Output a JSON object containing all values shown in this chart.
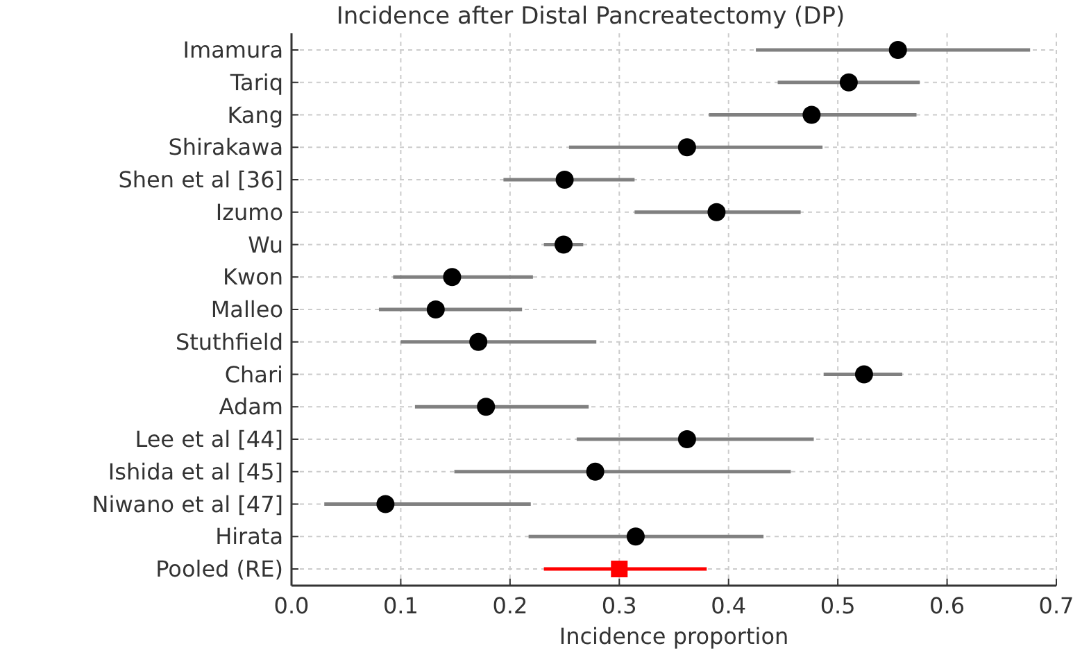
{
  "chart_data": {
    "type": "scatter",
    "orientation": "horizontal",
    "title": "Incidence after Distal Pancreatectomy (DP)",
    "xlabel": "Incidence proportion",
    "categories": [
      "Imamura",
      "Tariq",
      "Kang",
      "Shirakawa",
      "Shen et al [36]",
      "Izumo",
      "Wu",
      "Kwon",
      "Malleo",
      "Stuthfield",
      "Chari",
      "Adam",
      "Lee et al [44]",
      "Ishida et al [45]",
      "Niwano et al [47]",
      "Hirata",
      "Pooled (RE)"
    ],
    "series": [
      {
        "color": "#000000",
        "marker": "circle",
        "values": [
          0.555,
          0.51,
          0.476,
          0.362,
          0.25,
          0.389,
          0.249,
          0.147,
          0.132,
          0.171,
          0.524,
          0.178,
          0.362,
          0.278,
          0.086,
          0.315,
          null
        ],
        "errors": [
          [
            0.425,
            0.676
          ],
          [
            0.445,
            0.575
          ],
          [
            0.382,
            0.572
          ],
          [
            0.254,
            0.486
          ],
          [
            0.194,
            0.314
          ],
          [
            0.314,
            0.466
          ],
          [
            0.231,
            0.267
          ],
          [
            0.093,
            0.221
          ],
          [
            0.08,
            0.211
          ],
          [
            0.1,
            0.279
          ],
          [
            0.487,
            0.559
          ],
          [
            0.113,
            0.272
          ],
          [
            0.261,
            0.478
          ],
          [
            0.149,
            0.457
          ],
          [
            0.03,
            0.219
          ],
          [
            0.217,
            0.432
          ],
          null
        ]
      },
      {
        "color": "#ff0000",
        "marker": "square",
        "values": [
          null,
          null,
          null,
          null,
          null,
          null,
          null,
          null,
          null,
          null,
          null,
          null,
          null,
          null,
          null,
          null,
          0.3
        ],
        "errors": [
          null,
          null,
          null,
          null,
          null,
          null,
          null,
          null,
          null,
          null,
          null,
          null,
          null,
          null,
          null,
          null,
          [
            0.231,
            0.38
          ]
        ]
      }
    ],
    "xlim": [
      0,
      0.7
    ],
    "xticks": [
      {
        "value": 0,
        "label": "0.0"
      },
      0.1,
      0.2,
      0.3,
      0.4,
      0.5,
      0.6,
      0.7
    ],
    "grid": true
  }
}
